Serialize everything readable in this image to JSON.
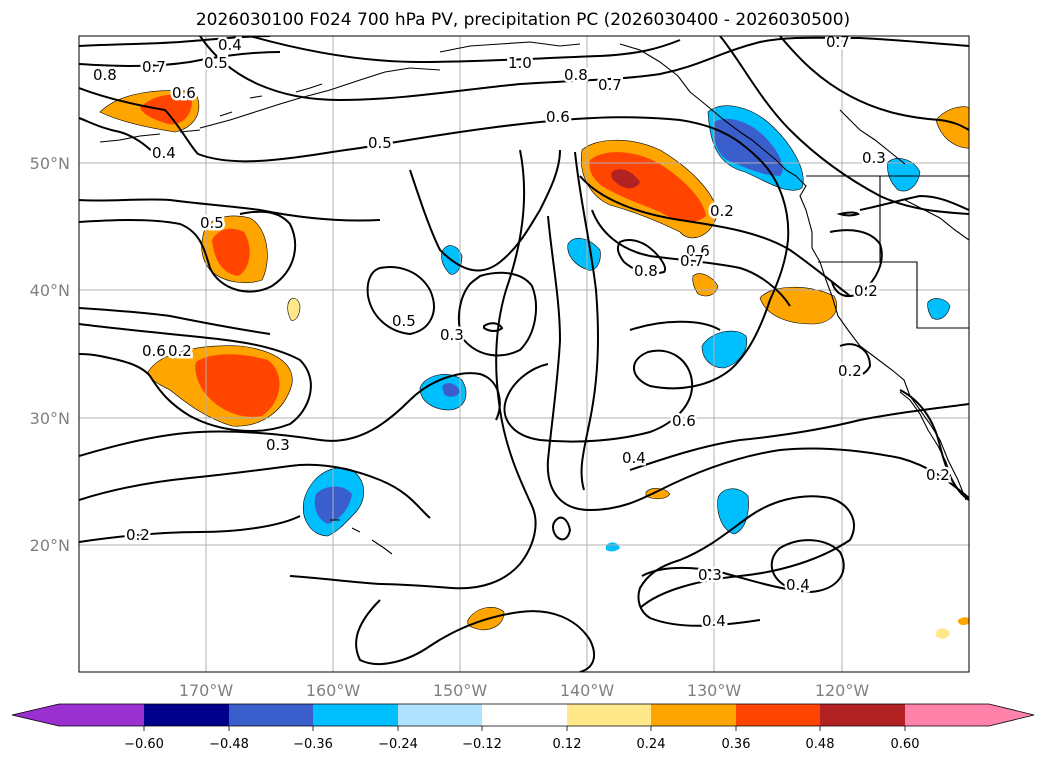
{
  "title": "2026030100 F024 700 hPa PV, precipitation PC (2026030400 - 2026030500)",
  "latitude_labels": [
    "50°N",
    "40°N",
    "30°N",
    "20°N"
  ],
  "longitude_labels": [
    "170°W",
    "160°W",
    "150°W",
    "140°W",
    "130°W",
    "120°W"
  ],
  "colorbar": {
    "tick_labels": [
      "−0.60",
      "−0.48",
      "−0.36",
      "−0.24",
      "−0.12",
      "0.12",
      "0.24",
      "0.36",
      "0.48",
      "0.60"
    ],
    "colors": {
      "under": "#9b30d0",
      "neg060": "#00008b",
      "neg048": "#3a5fcd",
      "neg036": "#00bfff",
      "neg024": "#b0e2ff",
      "neutral": "#ffffff",
      "pos012": "#ffe88a",
      "pos024": "#ffa500",
      "pos036": "#ff4500",
      "pos048": "#b22222",
      "over": "#ff82ab"
    }
  },
  "contour_labels": [
    "0.4",
    "0.5",
    "1.0",
    "0.8",
    "0.7",
    "0.7",
    "0.6",
    "0.5",
    "0.8",
    "0.7",
    "0.6",
    "0.4",
    "0.3",
    "0.2",
    "0.6",
    "0.8",
    "0.7",
    "0.5",
    "0.3",
    "0.5",
    "0.6",
    "0.3",
    "0.6",
    "0.4",
    "0.2",
    "0.3",
    "0.4",
    "0.4",
    "0.2",
    "0.2",
    "0.2",
    "0.2"
  ]
}
